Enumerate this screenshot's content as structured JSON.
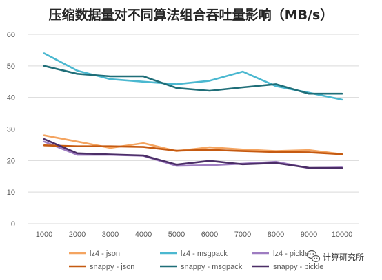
{
  "chart_data": {
    "type": "line",
    "title": "压缩数据量对不同算法组合吞吐量影响（MB/s）",
    "xlabel": "",
    "ylabel": "",
    "x": [
      1000,
      2000,
      3000,
      4000,
      5000,
      6000,
      7000,
      8000,
      9000,
      10000
    ],
    "ylim": [
      0,
      60
    ],
    "yticks": [
      0,
      10,
      20,
      30,
      40,
      50,
      60
    ],
    "grid": true,
    "legend_position": "bottom",
    "series": [
      {
        "name": "lz4 - json",
        "color": "#F4A460",
        "values": [
          28.0,
          26.0,
          24.0,
          25.5,
          23.0,
          24.2,
          23.5,
          23.0,
          23.3,
          22.0
        ]
      },
      {
        "name": "lz4 - msgpack",
        "color": "#4BB8D0",
        "values": [
          54.0,
          48.5,
          45.8,
          45.0,
          44.2,
          45.3,
          48.2,
          43.6,
          41.5,
          39.3
        ]
      },
      {
        "name": "lz4 - pickle",
        "color": "#9E7CC1",
        "values": [
          26.0,
          21.8,
          21.8,
          21.5,
          18.3,
          18.5,
          19.0,
          19.6,
          17.6,
          17.8
        ]
      },
      {
        "name": "snappy - json",
        "color": "#C55A11",
        "values": [
          24.8,
          24.5,
          24.5,
          24.3,
          23.1,
          23.4,
          23.0,
          22.7,
          22.6,
          22.0
        ]
      },
      {
        "name": "snappy - msgpack",
        "color": "#1F6E78",
        "values": [
          50.0,
          47.5,
          46.7,
          46.7,
          43.0,
          42.1,
          43.2,
          44.2,
          41.2,
          41.2
        ]
      },
      {
        "name": "snappy - pickle",
        "color": "#4B2E67",
        "values": [
          26.8,
          22.3,
          21.9,
          21.6,
          18.7,
          19.9,
          18.8,
          19.2,
          17.7,
          17.6
        ]
      }
    ]
  },
  "watermark": {
    "text": "计算研究所",
    "icon": "wechat-icon"
  }
}
